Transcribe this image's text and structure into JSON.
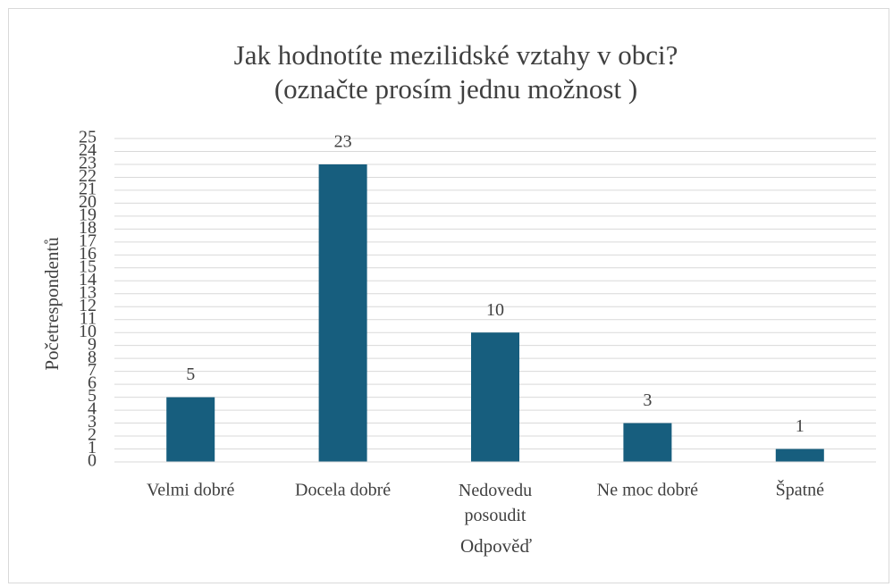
{
  "chart_data": {
    "type": "bar",
    "title": [
      "Jak hodnotíte mezilidské vztahy v obci?",
      "(označte prosím jednu možnost )"
    ],
    "x_label": "Odpověď",
    "y_label": "Početrespondentů",
    "categories": [
      "Velmi dobré",
      "Docela dobré",
      "Nedovedu posoudit",
      "Ne moc dobré",
      "Špatné"
    ],
    "values": [
      5,
      23,
      10,
      3,
      1
    ],
    "color": "#175e7e",
    "ylim": [
      0,
      25
    ],
    "yticks": [
      0,
      1,
      2,
      3,
      4,
      5,
      6,
      7,
      8,
      9,
      10,
      11,
      12,
      13,
      14,
      15,
      16,
      17,
      18,
      19,
      20,
      21,
      22,
      23,
      24,
      25
    ],
    "grid": true,
    "data_labels": true
  }
}
